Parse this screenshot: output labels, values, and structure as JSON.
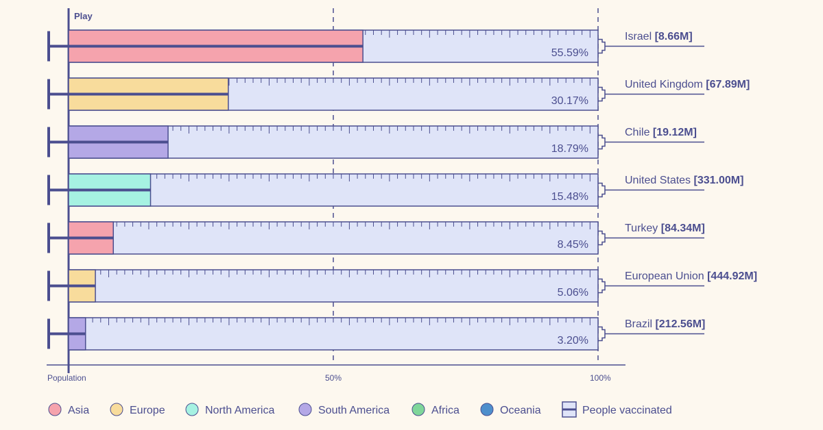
{
  "play_label": "Play",
  "colors": {
    "Asia": "#f5a3ad",
    "Europe": "#f8dc9c",
    "North America": "#a6f2e2",
    "South America": "#b4a8e6",
    "Africa": "#7fd69a",
    "Oceania": "#4e8fcc",
    "barrel": "#dfe4f8",
    "ink": "#4b4e8f"
  },
  "chart_data": {
    "type": "bar",
    "orientation": "horizontal",
    "xlim": [
      0,
      100
    ],
    "x_ticks": [
      {
        "value": 0,
        "label": "Population"
      },
      {
        "value": 50,
        "label": "50%"
      },
      {
        "value": 100,
        "label": "100%"
      }
    ],
    "categories": [
      "Israel",
      "United Kingdom",
      "Chile",
      "United States",
      "Turkey",
      "European Union",
      "Brazil"
    ],
    "populations": [
      "[8.66M]",
      "[67.89M]",
      "[19.12M]",
      "[331.00M]",
      "[84.34M]",
      "[444.92M]",
      "[212.56M]"
    ],
    "regions": [
      "Asia",
      "Europe",
      "South America",
      "North America",
      "Asia",
      "Europe",
      "South America"
    ],
    "values": [
      55.59,
      30.17,
      18.79,
      15.48,
      8.45,
      5.06,
      3.2
    ],
    "value_labels": [
      "55.59%",
      "30.17%",
      "18.79%",
      "15.48%",
      "8.45%",
      "5.06%",
      "3.20%"
    ]
  },
  "legend": [
    {
      "label": "Asia",
      "type": "dot",
      "color": "#f5a3ad"
    },
    {
      "label": "Europe",
      "type": "dot",
      "color": "#f8dc9c"
    },
    {
      "label": "North America",
      "type": "dot",
      "color": "#a6f2e2"
    },
    {
      "label": "South America",
      "type": "dot",
      "color": "#b4a8e6"
    },
    {
      "label": "Africa",
      "type": "dot",
      "color": "#7fd69a"
    },
    {
      "label": "Oceania",
      "type": "dot",
      "color": "#4e8fcc"
    },
    {
      "label": "People vaccinated",
      "type": "barrel",
      "color": "#dfe4f8"
    }
  ]
}
